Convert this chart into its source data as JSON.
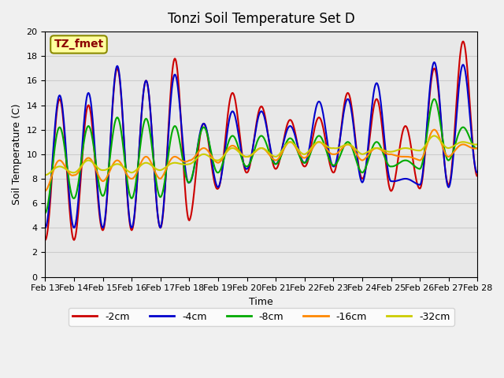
{
  "title": "Tonzi Soil Temperature Set D",
  "xlabel": "Time",
  "ylabel": "Soil Temperature (C)",
  "ylim": [
    0,
    20
  ],
  "annotation": "TZ_fmet",
  "annotation_color": "#8B0000",
  "annotation_bg": "#FFFFA0",
  "series_order": [
    "-2cm",
    "-4cm",
    "-8cm",
    "-16cm",
    "-32cm"
  ],
  "series": {
    "-2cm": {
      "color": "#CC0000",
      "linewidth": 1.5
    },
    "-4cm": {
      "color": "#0000CC",
      "linewidth": 1.5
    },
    "-8cm": {
      "color": "#00AA00",
      "linewidth": 1.5
    },
    "-16cm": {
      "color": "#FF8800",
      "linewidth": 1.5
    },
    "-32cm": {
      "color": "#CCCC00",
      "linewidth": 1.5
    }
  },
  "x_tick_labels": [
    "Feb 13",
    "Feb 14",
    "Feb 15",
    "Feb 16",
    "Feb 17",
    "Feb 18",
    "Feb 19",
    "Feb 20",
    "Feb 21",
    "Feb 22",
    "Feb 23",
    "Feb 24",
    "Feb 25",
    "Feb 26",
    "Feb 27",
    "Feb 28"
  ],
  "grid_color": "#CCCCCC",
  "bg_color": "#E8E8E8",
  "fig_color": "#F0F0F0",
  "title_fontsize": 12,
  "axis_fontsize": 9,
  "tick_fontsize": 8,
  "legend_fontsize": 9,
  "n_days": 15,
  "pts_per_day": 48,
  "raw": {
    "m2cm": {
      "peaks": [
        3.0,
        14.5,
        14.0,
        17.0,
        16.0,
        17.8,
        12.5,
        15.0,
        13.9,
        12.8,
        13.0,
        15.0,
        14.5,
        12.3,
        17.0,
        19.2
      ],
      "troughs": [
        3.0,
        3.0,
        3.8,
        3.8,
        4.0,
        4.6,
        7.2,
        8.5,
        8.8,
        9.0,
        8.5,
        8.0,
        7.0,
        7.2,
        7.5,
        8.2
      ]
    },
    "m4cm": {
      "peaks": [
        4.0,
        14.8,
        15.0,
        17.2,
        16.0,
        16.5,
        12.5,
        13.5,
        13.5,
        12.3,
        14.3,
        14.5,
        15.8,
        8.0,
        17.5,
        17.3
      ],
      "troughs": [
        4.0,
        4.0,
        4.0,
        4.0,
        4.0,
        7.7,
        7.3,
        8.8,
        9.2,
        9.3,
        9.0,
        7.7,
        7.8,
        7.5,
        7.3,
        8.5
      ]
    },
    "m8cm": {
      "peaks": [
        5.2,
        12.2,
        12.3,
        13.0,
        12.9,
        12.3,
        12.2,
        11.5,
        11.5,
        11.3,
        11.5,
        11.0,
        11.0,
        9.5,
        14.5,
        12.2
      ],
      "troughs": [
        5.2,
        6.4,
        6.6,
        6.4,
        6.5,
        7.7,
        8.5,
        9.0,
        9.2,
        9.3,
        9.1,
        8.5,
        9.0,
        8.8,
        9.5,
        10.5
      ]
    },
    "m16cm": {
      "peaks": [
        7.0,
        9.5,
        9.7,
        9.5,
        9.8,
        9.8,
        10.5,
        10.7,
        10.5,
        11.0,
        11.0,
        10.8,
        10.5,
        9.8,
        12.0,
        10.8
      ],
      "troughs": [
        7.0,
        8.3,
        7.8,
        8.0,
        8.0,
        9.5,
        9.3,
        9.8,
        9.5,
        9.7,
        10.0,
        9.5,
        10.0,
        9.5,
        9.8,
        10.5
      ]
    },
    "m32cm": {
      "peaks": [
        8.3,
        9.0,
        9.5,
        9.2,
        9.3,
        9.3,
        10.0,
        10.5,
        10.5,
        11.0,
        11.0,
        10.8,
        10.5,
        10.5,
        11.5,
        11.0
      ],
      "troughs": [
        8.3,
        8.5,
        8.7,
        8.5,
        8.7,
        9.2,
        9.5,
        9.8,
        9.8,
        10.0,
        10.5,
        10.0,
        10.2,
        10.3,
        10.5,
        10.8
      ]
    }
  }
}
